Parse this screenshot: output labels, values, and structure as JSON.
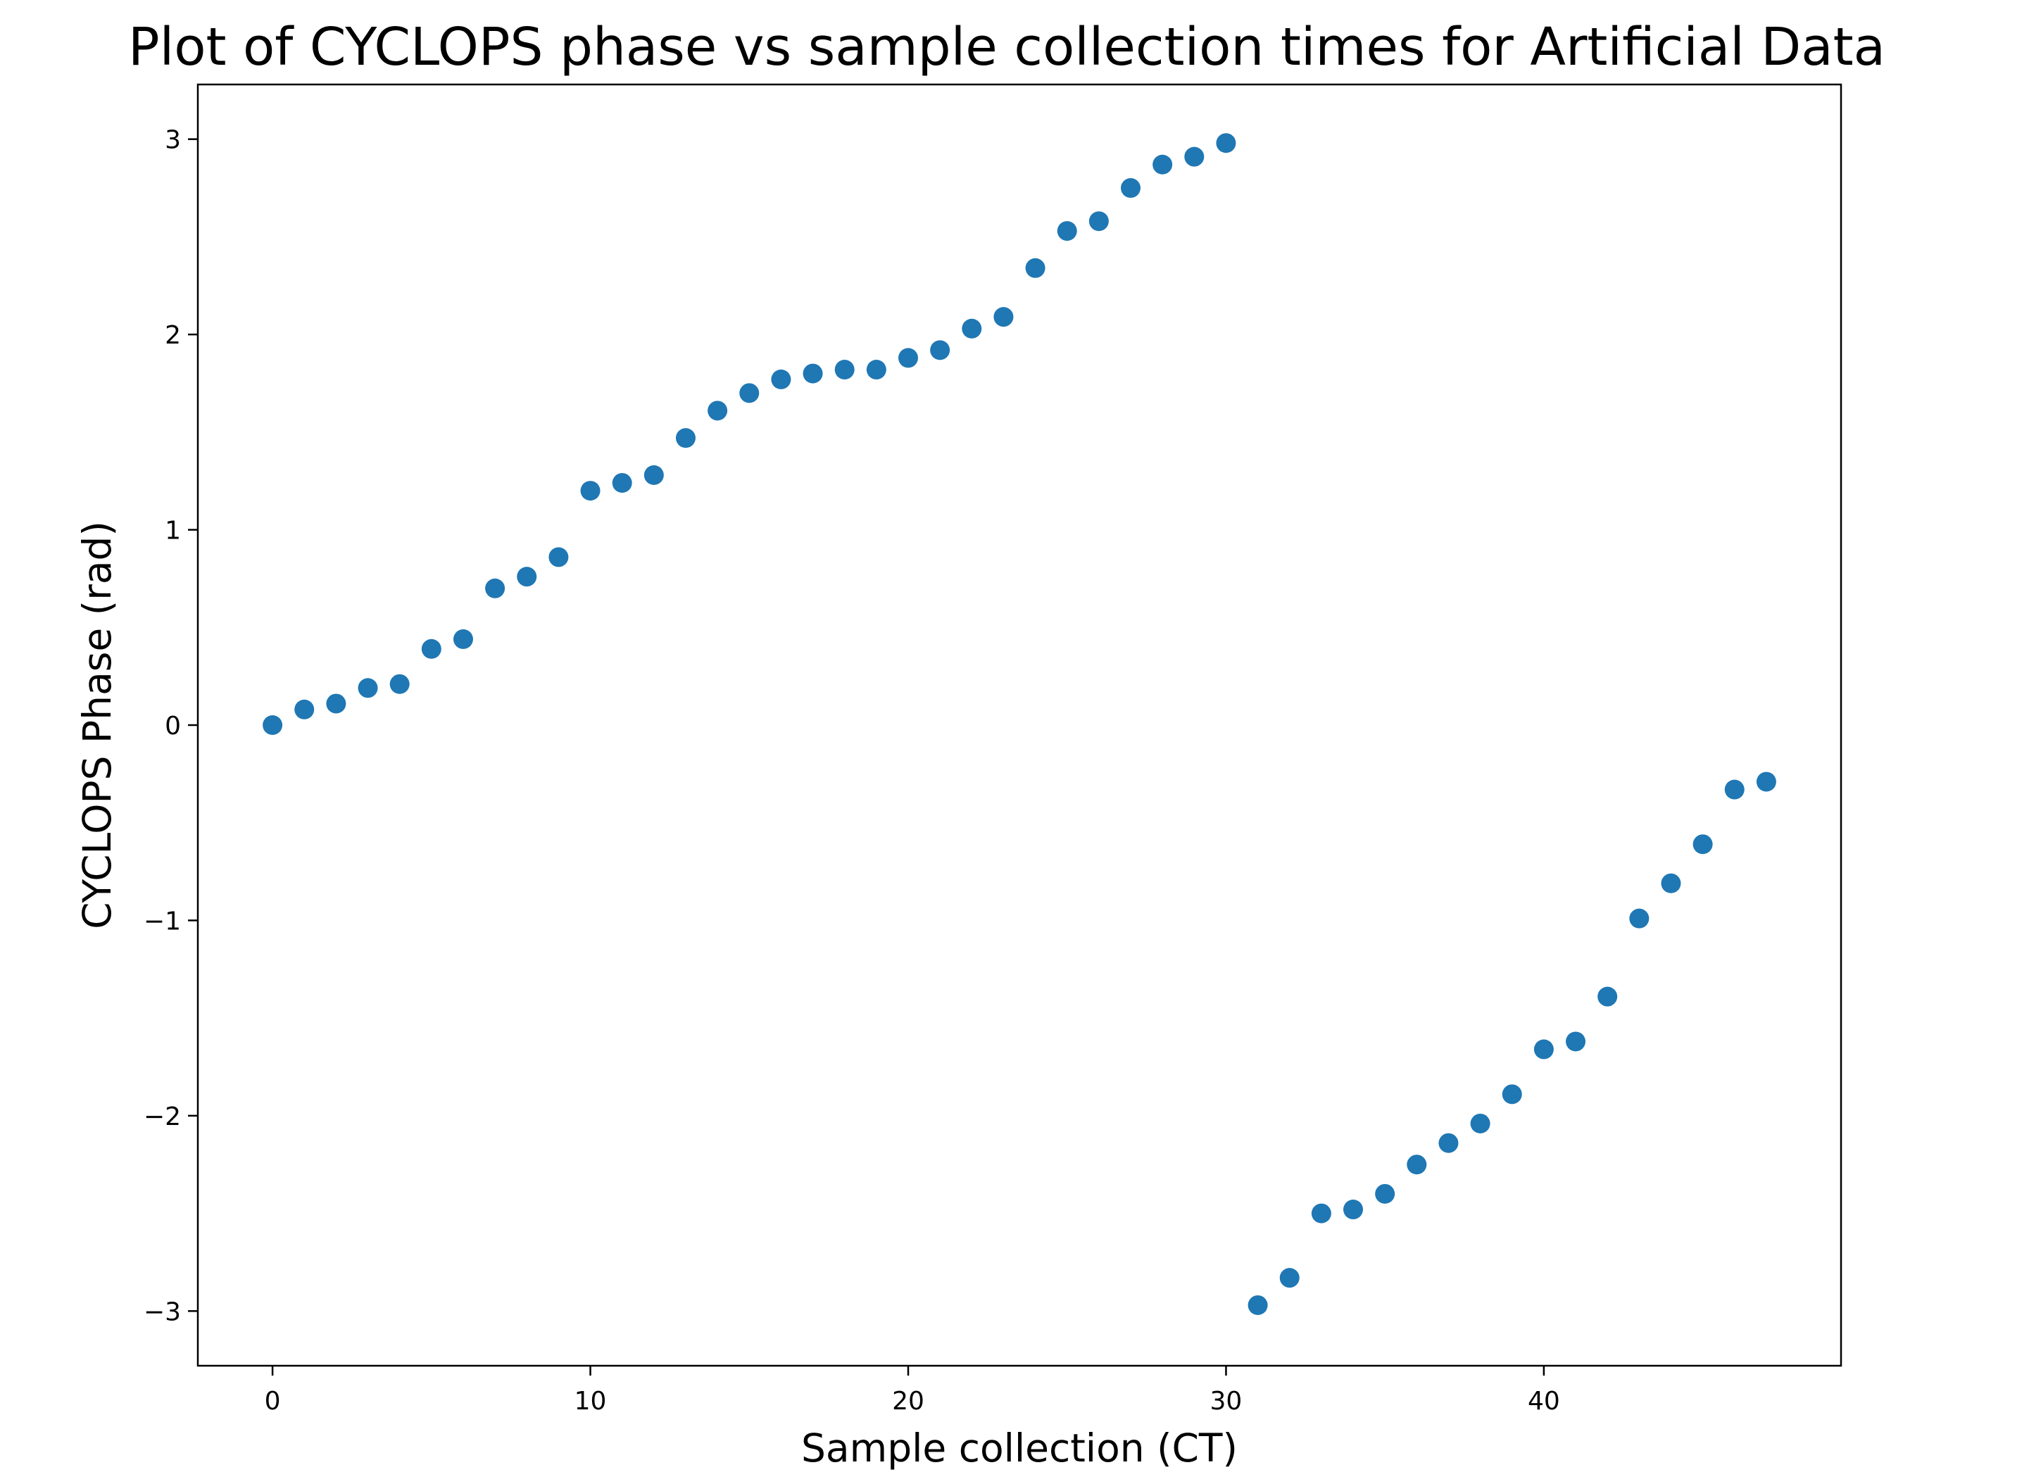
{
  "chart_data": {
    "type": "scatter",
    "title": "Plot of CYCLOPS phase vs sample collection times for Artificial Data",
    "xlabel": "Sample collection (CT)",
    "ylabel": "CYCLOPS Phase (rad)",
    "xlim": [
      -2.35,
      49.35
    ],
    "ylim": [
      -3.28,
      3.28
    ],
    "x_ticks": [
      0,
      10,
      20,
      30,
      40
    ],
    "y_ticks": [
      -3,
      -2,
      -1,
      0,
      1,
      2,
      3
    ],
    "x_tick_labels": [
      "0",
      "10",
      "20",
      "30",
      "40"
    ],
    "y_tick_labels": [
      "−3",
      "−2",
      "−1",
      "0",
      "1",
      "2",
      "3"
    ],
    "grid": false,
    "legend": "none",
    "marker_color": "#1f77b4",
    "series": [
      {
        "x": [
          0,
          1,
          2,
          3,
          4,
          5,
          6,
          7,
          8,
          9,
          10,
          11,
          12,
          13,
          14,
          15,
          16,
          17,
          18,
          19,
          20,
          21,
          22,
          23,
          24,
          25,
          26,
          27,
          28,
          29,
          30,
          31,
          32,
          33,
          34,
          35,
          36,
          37,
          38,
          39,
          40,
          41,
          42,
          43,
          44,
          45,
          46,
          47
        ],
        "y": [
          0.0,
          0.08,
          0.11,
          0.19,
          0.21,
          0.39,
          0.44,
          0.7,
          0.76,
          0.86,
          1.2,
          1.24,
          1.28,
          1.47,
          1.61,
          1.7,
          1.77,
          1.8,
          1.82,
          1.82,
          1.88,
          1.92,
          2.03,
          2.09,
          2.34,
          2.53,
          2.58,
          2.75,
          2.87,
          2.91,
          2.98,
          -2.97,
          -2.83,
          -2.5,
          -2.48,
          -2.4,
          -2.25,
          -2.14,
          -2.04,
          -1.89,
          -1.66,
          -1.62,
          -1.39,
          -0.99,
          -0.81,
          -0.61,
          -0.33,
          -0.29
        ]
      }
    ]
  }
}
